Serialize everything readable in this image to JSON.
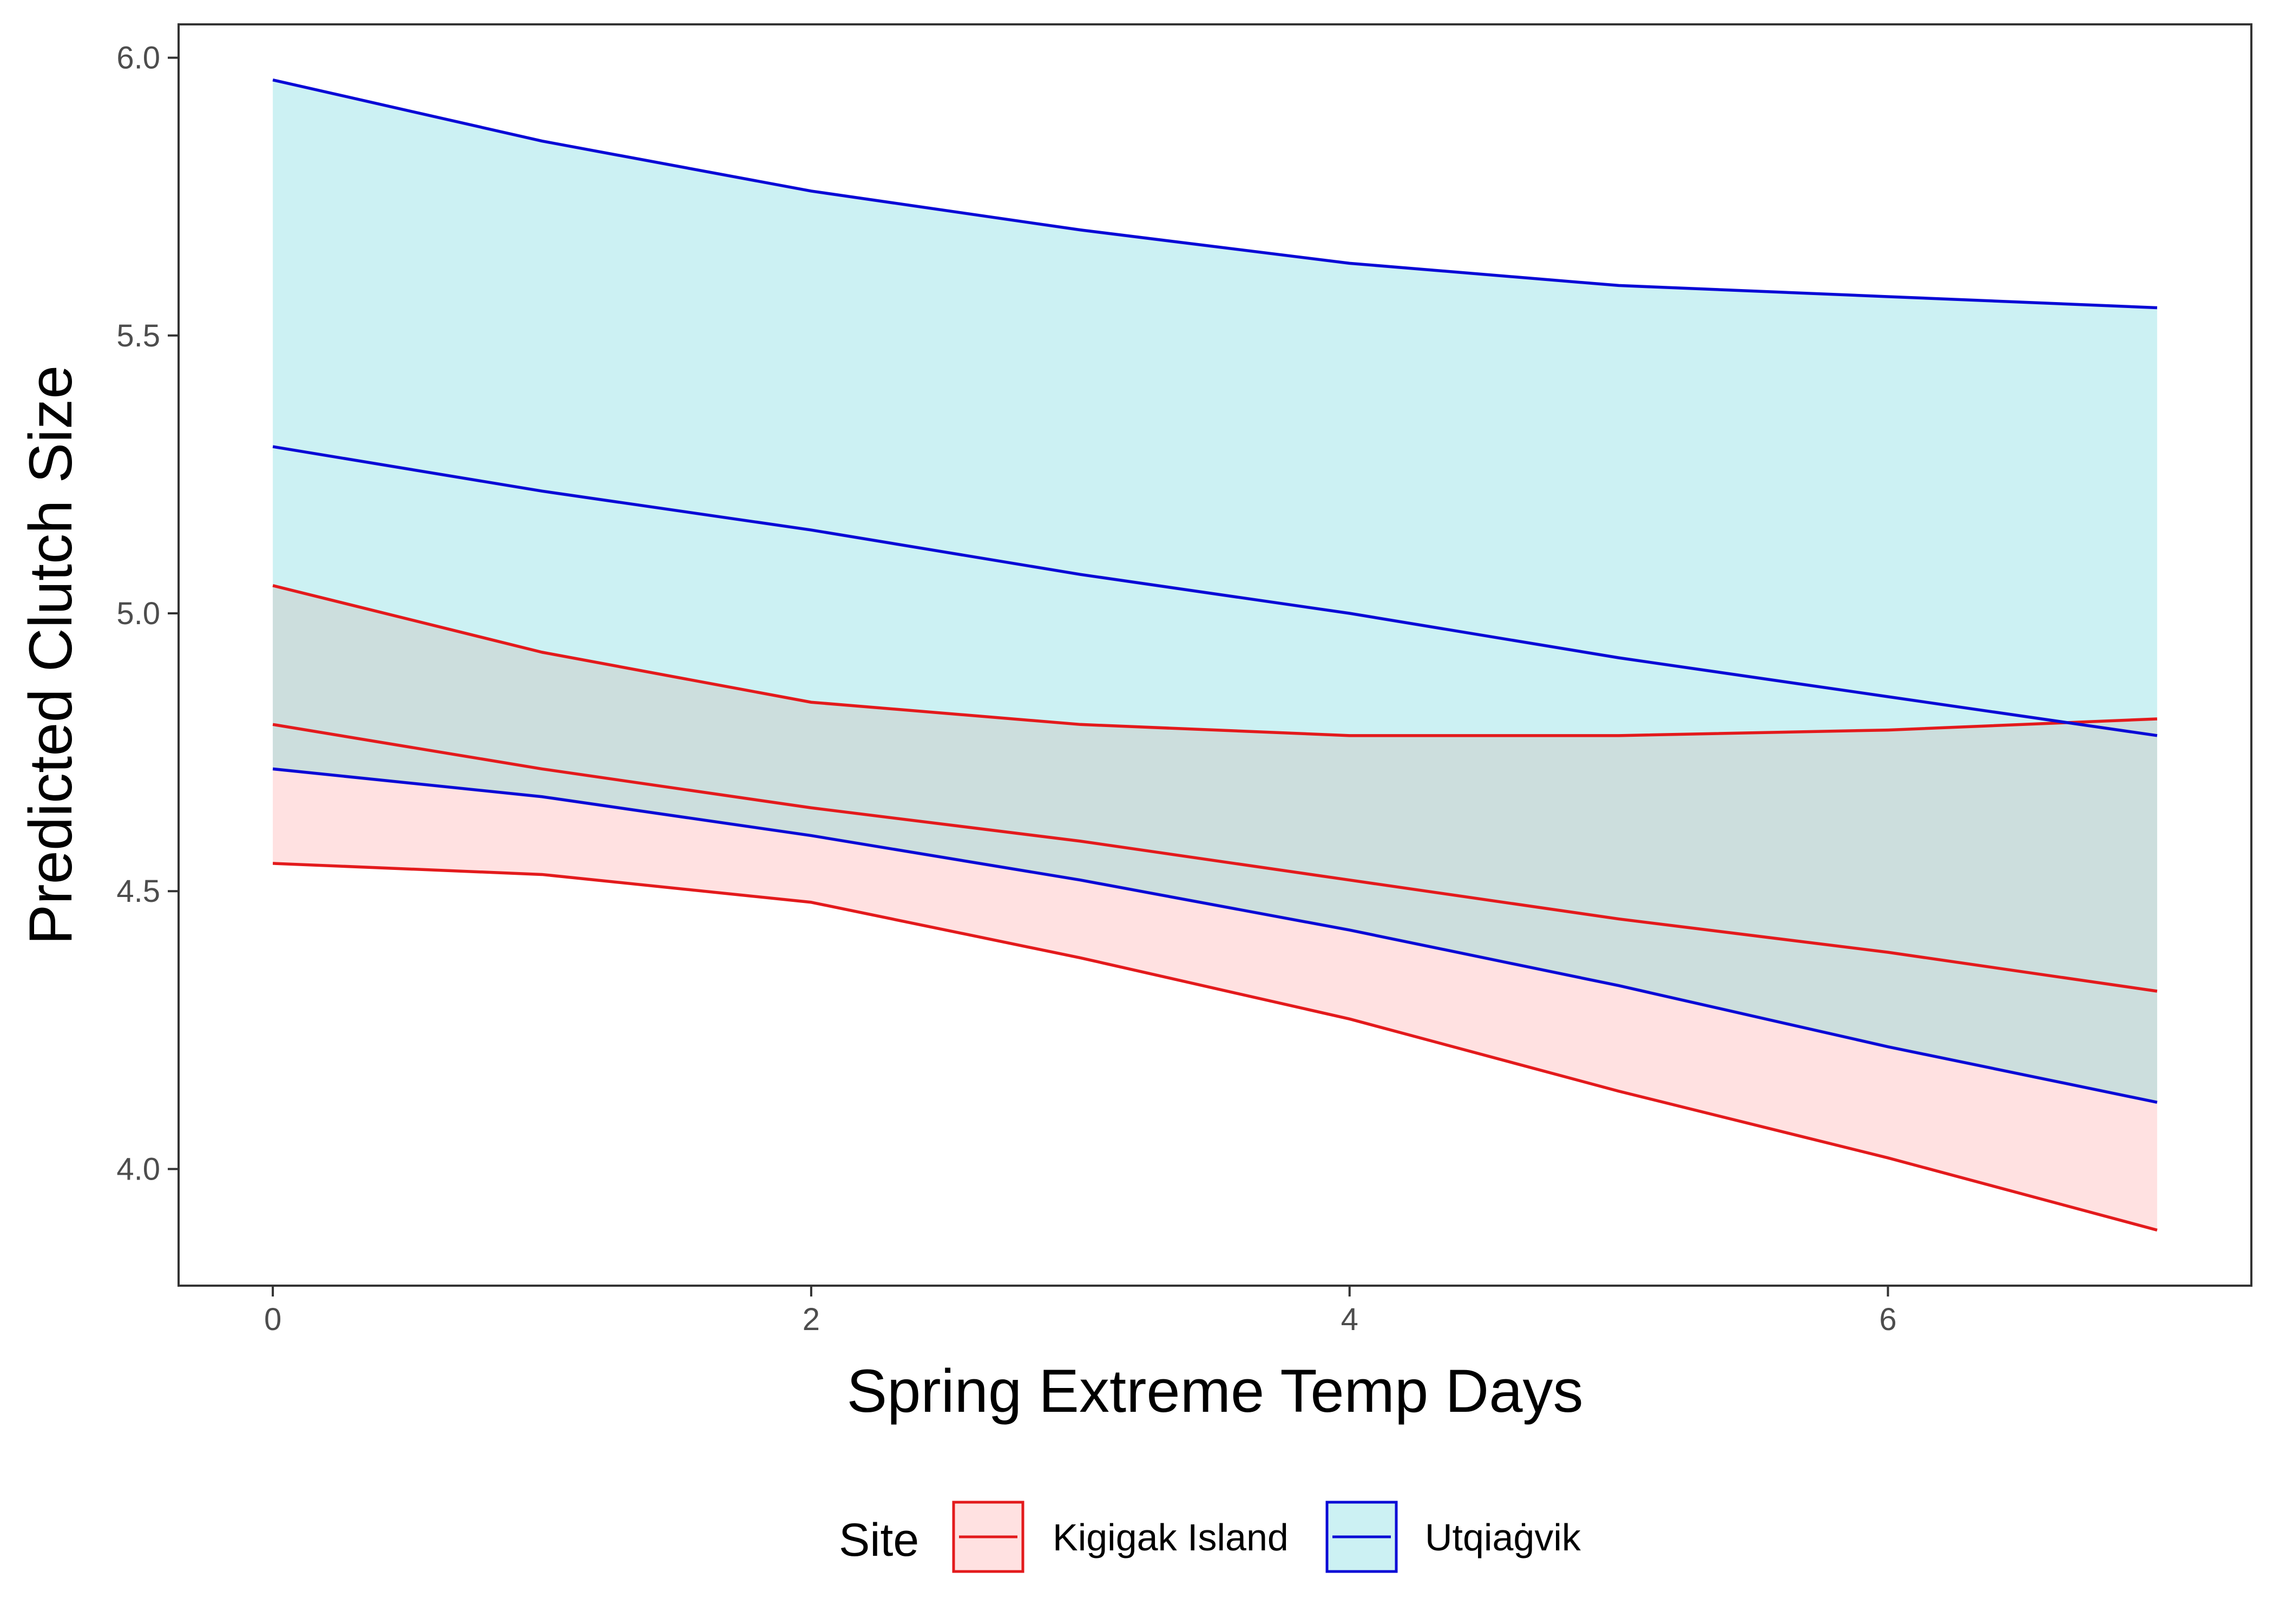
{
  "chart_data": {
    "type": "line",
    "xlabel": "Spring Extreme Temp Days",
    "ylabel": "Predicted Clutch Size",
    "xlim": [
      -0.35,
      7.35
    ],
    "ylim": [
      3.79,
      6.06
    ],
    "x_ticks": [
      0,
      2,
      4,
      6
    ],
    "x_tick_labels": [
      "0",
      "2",
      "4",
      "6"
    ],
    "y_ticks": [
      4.0,
      4.5,
      5.0,
      5.5,
      6.0
    ],
    "y_tick_labels": [
      "4.0",
      "4.5",
      "5.0",
      "5.5",
      "6.0"
    ],
    "grid": false,
    "legend_position": "bottom",
    "legend_title": "Site",
    "x": [
      0,
      1,
      2,
      3,
      4,
      5,
      6,
      7
    ],
    "series": [
      {
        "name": "Kigigak Island",
        "line_color": "#e31a1c",
        "fill_color": "#ffe1e1",
        "values": [
          4.8,
          4.72,
          4.65,
          4.59,
          4.52,
          4.45,
          4.39,
          4.32
        ],
        "lower": [
          4.55,
          4.53,
          4.48,
          4.38,
          4.27,
          4.14,
          4.02,
          3.89
        ],
        "upper": [
          5.05,
          4.93,
          4.84,
          4.8,
          4.78,
          4.78,
          4.79,
          4.81
        ]
      },
      {
        "name": "Utqiaġvik",
        "line_color": "#0a0ad6",
        "fill_color": "#ccf1f3",
        "values": [
          5.3,
          5.22,
          5.15,
          5.07,
          5.0,
          4.92,
          4.85,
          4.78
        ],
        "lower": [
          4.72,
          4.67,
          4.6,
          4.52,
          4.43,
          4.33,
          4.22,
          4.12
        ],
        "upper": [
          5.96,
          5.85,
          5.76,
          5.69,
          5.63,
          5.59,
          5.57,
          5.55
        ]
      }
    ],
    "overlap_fill_color": "#ccdedd",
    "axis_color": "#333333",
    "tick_text_color": "#4d4d4d"
  }
}
